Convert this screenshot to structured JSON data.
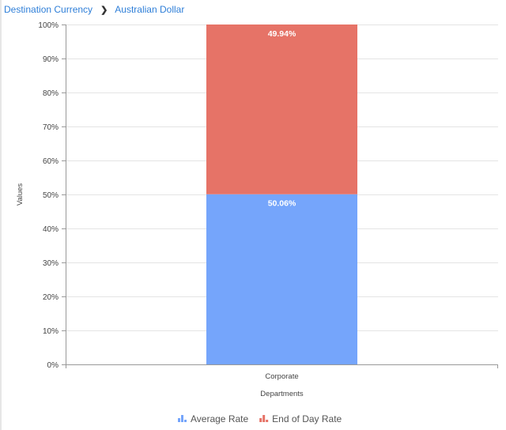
{
  "breadcrumb": [
    "Destination Currency",
    "Australian Dollar"
  ],
  "chart_data": {
    "type": "bar",
    "stacked": true,
    "percent": true,
    "categories": [
      "Corporate"
    ],
    "series": [
      {
        "name": "Average Rate",
        "values": [
          50.06
        ],
        "color": "#75a5fb",
        "label": "50.06%"
      },
      {
        "name": "End of Day Rate",
        "values": [
          49.94
        ],
        "color": "#e67367",
        "label": "49.94%"
      }
    ],
    "xlabel": "Departments",
    "ylabel": "Values",
    "ylim": [
      0,
      100
    ],
    "yticks": [
      "0%",
      "10%",
      "20%",
      "30%",
      "40%",
      "50%",
      "60%",
      "70%",
      "80%",
      "90%",
      "100%"
    ],
    "grid": true,
    "legend": "bottom-center"
  }
}
